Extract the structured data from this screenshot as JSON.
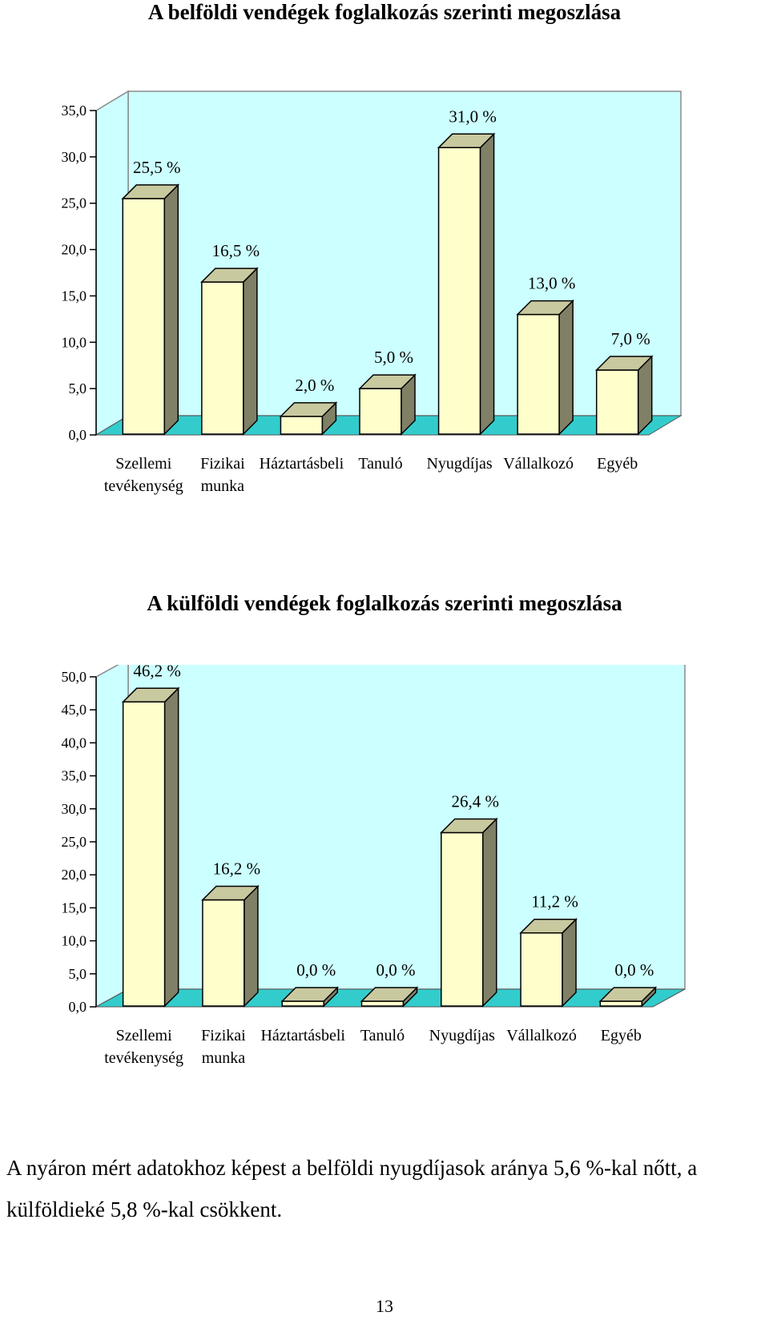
{
  "chart_data": [
    {
      "type": "bar",
      "title": "A belföldi vendégek foglalkozás szerinti megoszlása",
      "categories": [
        [
          "Szellemi",
          "tevékenység"
        ],
        [
          "Fizikai",
          "munka"
        ],
        [
          "Háztartásbeli"
        ],
        [
          "Tanuló"
        ],
        [
          "Nyugdíjas"
        ],
        [
          "Vállalkozó"
        ],
        [
          "Egyéb"
        ]
      ],
      "values": [
        25.5,
        16.5,
        2.0,
        5.0,
        31.0,
        13.0,
        7.0
      ],
      "data_labels": [
        "25,5 %",
        "16,5 %",
        "2,0 %",
        "5,0 %",
        "31,0 %",
        "13,0 %",
        "7,0 %"
      ],
      "y_ticks": [
        "0,0",
        "5,0",
        "10,0",
        "15,0",
        "20,0",
        "25,0",
        "30,0",
        "35,0"
      ],
      "ylim": [
        0,
        35
      ],
      "grid": false,
      "legend": "none",
      "colors": {
        "wall": "#ccffff",
        "floor": "#33cccc",
        "bar_front": "#ffffcc",
        "bar_top": "#c9c9a0",
        "bar_side": "#808066"
      }
    },
    {
      "type": "bar",
      "title": "A külföldi vendégek foglalkozás szerinti megoszlása",
      "categories": [
        [
          "Szellemi",
          "tevékenység"
        ],
        [
          "Fizikai",
          "munka"
        ],
        [
          "Háztartásbeli"
        ],
        [
          "Tanuló"
        ],
        [
          "Nyugdíjas"
        ],
        [
          "Vállalkozó"
        ],
        [
          "Egyéb"
        ]
      ],
      "values": [
        46.2,
        16.2,
        0.0,
        0.0,
        26.4,
        11.2,
        0.0
      ],
      "data_labels": [
        "46,2 %",
        "16,2 %",
        "0,0 %",
        "0,0 %",
        "26,4 %",
        "11,2 %",
        "0,0 %"
      ],
      "y_ticks": [
        "0,0",
        "5,0",
        "10,0",
        "15,0",
        "20,0",
        "25,0",
        "30,0",
        "35,0",
        "40,0",
        "45,0",
        "50,0"
      ],
      "ylim": [
        0,
        50
      ],
      "grid": false,
      "legend": "none",
      "colors": {
        "wall": "#ccffff",
        "floor": "#33cccc",
        "bar_front": "#ffffcc",
        "bar_top": "#c9c9a0",
        "bar_side": "#808066"
      }
    }
  ],
  "text": {
    "paragraph": "A nyáron mért adatokhoz képest a belföldi nyugdíjasok aránya 5,6 %-kal nőtt, a külföldieké 5,8 %-kal csökkent.",
    "page_number": "13"
  }
}
